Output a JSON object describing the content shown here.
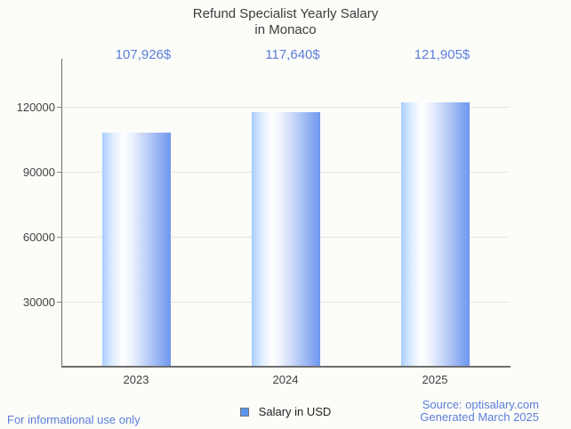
{
  "title": {
    "line1": "Refund Specialist Yearly Salary",
    "line2": "in Monaco"
  },
  "legend": {
    "label": "Salary in USD"
  },
  "footer": {
    "left": "For informational use only",
    "source": "Source: optisalary.com",
    "generated": "Generated March 2025"
  },
  "colors": {
    "background": "#fcfcf9",
    "title_text": "#3c3c3c",
    "axis_text": "#424242",
    "axis_line": "#6e6e6e",
    "gridline": "#e5e5e2",
    "annotation_blue": "#5c7edb",
    "footer_blue": "#5c7edb",
    "bar_left": "#a9cefc",
    "bar_highlight": "#ffffff",
    "bar_right": "#6d97ef",
    "legend_square": "#5d96ef"
  },
  "chart_data": {
    "type": "bar",
    "title": "Refund Specialist Yearly Salary in Monaco",
    "categories": [
      "2023",
      "2024",
      "2025"
    ],
    "series": [
      {
        "name": "Salary in USD",
        "values": [
          107926,
          117640,
          121905
        ]
      }
    ],
    "annotations": [
      "107,926$",
      "117,640$",
      "121,905$"
    ],
    "xlabel": "",
    "ylabel": "",
    "ylim": [
      0,
      141000
    ],
    "yticks": [
      30000,
      60000,
      90000,
      120000
    ],
    "grid": true,
    "legend_position": "bottom"
  }
}
